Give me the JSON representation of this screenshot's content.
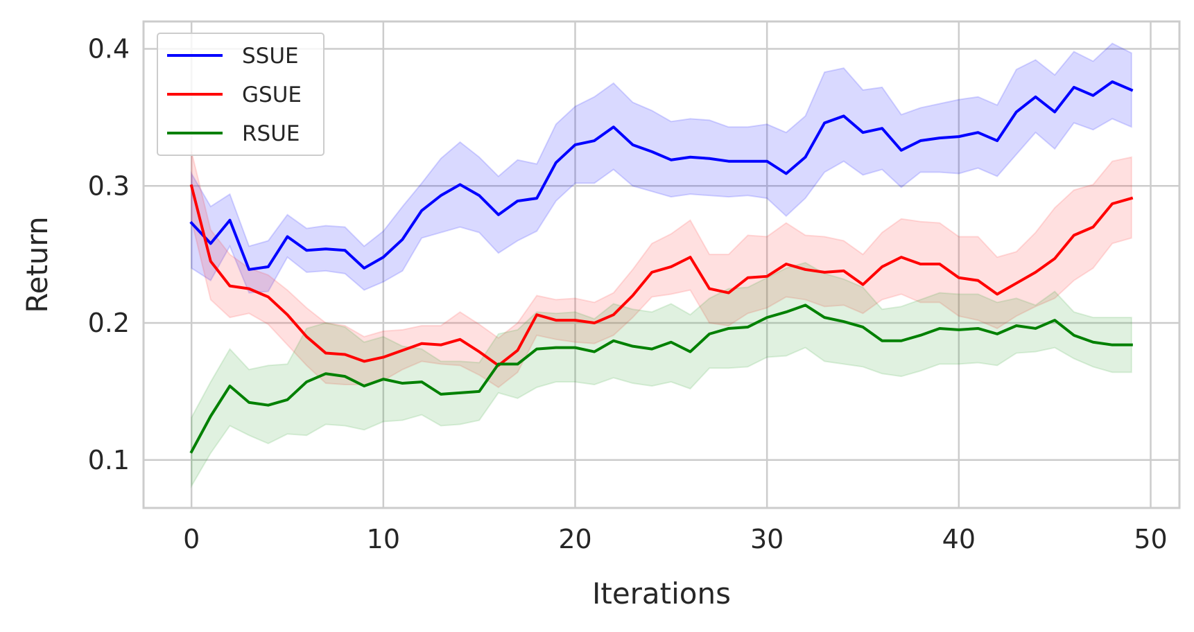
{
  "chart_data": {
    "type": "line",
    "title": "",
    "xlabel": "Iterations",
    "ylabel": "Return",
    "xlim": [
      -2.5,
      51.5
    ],
    "ylim": [
      0.065,
      0.42
    ],
    "x_ticks": [
      0,
      10,
      20,
      30,
      40,
      50
    ],
    "x_tick_labels": [
      "0",
      "10",
      "20",
      "30",
      "40",
      "50"
    ],
    "y_ticks": [
      0.1,
      0.2,
      0.3,
      0.4
    ],
    "y_tick_labels": [
      "0.1",
      "0.2",
      "0.3",
      "0.4"
    ],
    "grid": true,
    "legend_position": "top-left",
    "series": [
      {
        "name": "SSUE",
        "color": "#0000ff",
        "band_color": "#0000ff",
        "values": [
          0.273,
          0.258,
          0.275,
          0.239,
          0.241,
          0.263,
          0.253,
          0.254,
          0.253,
          0.24,
          0.248,
          0.261,
          0.282,
          0.293,
          0.301,
          0.293,
          0.279,
          0.289,
          0.291,
          0.317,
          0.33,
          0.333,
          0.343,
          0.33,
          0.325,
          0.319,
          0.321,
          0.32,
          0.318,
          0.318,
          0.318,
          0.309,
          0.321,
          0.346,
          0.351,
          0.339,
          0.342,
          0.326,
          0.333,
          0.335,
          0.336,
          0.339,
          0.333,
          0.354,
          0.365,
          0.354,
          0.372,
          0.366,
          0.376,
          0.37
        ],
        "upper": [
          0.309,
          0.285,
          0.294,
          0.256,
          0.26,
          0.279,
          0.269,
          0.271,
          0.27,
          0.256,
          0.267,
          0.285,
          0.302,
          0.32,
          0.332,
          0.321,
          0.307,
          0.319,
          0.316,
          0.345,
          0.358,
          0.365,
          0.375,
          0.361,
          0.355,
          0.347,
          0.349,
          0.348,
          0.343,
          0.343,
          0.345,
          0.339,
          0.351,
          0.383,
          0.386,
          0.37,
          0.372,
          0.352,
          0.357,
          0.36,
          0.363,
          0.365,
          0.359,
          0.385,
          0.392,
          0.381,
          0.398,
          0.391,
          0.404,
          0.397
        ],
        "lower": [
          0.24,
          0.231,
          0.256,
          0.222,
          0.223,
          0.248,
          0.237,
          0.238,
          0.236,
          0.224,
          0.23,
          0.238,
          0.262,
          0.266,
          0.27,
          0.266,
          0.251,
          0.26,
          0.267,
          0.289,
          0.302,
          0.302,
          0.312,
          0.3,
          0.296,
          0.292,
          0.294,
          0.293,
          0.292,
          0.293,
          0.291,
          0.278,
          0.291,
          0.31,
          0.318,
          0.308,
          0.312,
          0.299,
          0.31,
          0.31,
          0.309,
          0.313,
          0.307,
          0.323,
          0.339,
          0.327,
          0.346,
          0.341,
          0.349,
          0.343
        ]
      },
      {
        "name": "GSUE",
        "color": "#ff0000",
        "band_color": "#ff3030",
        "values": [
          0.3,
          0.245,
          0.227,
          0.225,
          0.219,
          0.206,
          0.19,
          0.178,
          0.177,
          0.172,
          0.175,
          0.18,
          0.185,
          0.184,
          0.188,
          0.179,
          0.169,
          0.18,
          0.206,
          0.202,
          0.202,
          0.2,
          0.206,
          0.22,
          0.237,
          0.241,
          0.248,
          0.225,
          0.222,
          0.233,
          0.234,
          0.243,
          0.239,
          0.237,
          0.238,
          0.228,
          0.241,
          0.248,
          0.243,
          0.243,
          0.233,
          0.231,
          0.221,
          0.229,
          0.237,
          0.247,
          0.264,
          0.27,
          0.287,
          0.291
        ],
        "upper": [
          0.325,
          0.268,
          0.25,
          0.24,
          0.235,
          0.224,
          0.211,
          0.2,
          0.198,
          0.19,
          0.194,
          0.195,
          0.198,
          0.198,
          0.208,
          0.199,
          0.189,
          0.2,
          0.22,
          0.217,
          0.218,
          0.215,
          0.222,
          0.239,
          0.258,
          0.265,
          0.275,
          0.25,
          0.25,
          0.264,
          0.263,
          0.273,
          0.264,
          0.263,
          0.26,
          0.25,
          0.266,
          0.276,
          0.274,
          0.273,
          0.263,
          0.263,
          0.248,
          0.252,
          0.266,
          0.284,
          0.297,
          0.301,
          0.318,
          0.321
        ],
        "lower": [
          0.275,
          0.217,
          0.204,
          0.207,
          0.199,
          0.184,
          0.169,
          0.156,
          0.155,
          0.155,
          0.158,
          0.166,
          0.172,
          0.17,
          0.169,
          0.162,
          0.153,
          0.164,
          0.191,
          0.188,
          0.186,
          0.185,
          0.191,
          0.204,
          0.219,
          0.221,
          0.224,
          0.2,
          0.198,
          0.207,
          0.211,
          0.219,
          0.217,
          0.212,
          0.213,
          0.207,
          0.217,
          0.221,
          0.215,
          0.215,
          0.205,
          0.202,
          0.196,
          0.205,
          0.212,
          0.218,
          0.231,
          0.24,
          0.258,
          0.262
        ]
      },
      {
        "name": "RSUE",
        "color": "#008000",
        "band_color": "#2ca02c",
        "values": [
          0.106,
          0.132,
          0.154,
          0.142,
          0.14,
          0.144,
          0.157,
          0.163,
          0.161,
          0.154,
          0.159,
          0.156,
          0.157,
          0.148,
          0.149,
          0.15,
          0.17,
          0.17,
          0.181,
          0.182,
          0.182,
          0.179,
          0.187,
          0.183,
          0.181,
          0.186,
          0.179,
          0.192,
          0.196,
          0.197,
          0.204,
          0.208,
          0.213,
          0.204,
          0.201,
          0.197,
          0.187,
          0.187,
          0.191,
          0.196,
          0.195,
          0.196,
          0.192,
          0.198,
          0.196,
          0.202,
          0.191,
          0.186,
          0.184,
          0.184
        ],
        "upper": [
          0.131,
          0.157,
          0.181,
          0.166,
          0.169,
          0.17,
          0.196,
          0.2,
          0.197,
          0.186,
          0.19,
          0.183,
          0.181,
          0.172,
          0.172,
          0.171,
          0.192,
          0.195,
          0.208,
          0.207,
          0.208,
          0.203,
          0.214,
          0.21,
          0.208,
          0.214,
          0.206,
          0.218,
          0.225,
          0.226,
          0.233,
          0.24,
          0.244,
          0.236,
          0.232,
          0.226,
          0.21,
          0.212,
          0.217,
          0.222,
          0.221,
          0.221,
          0.215,
          0.218,
          0.213,
          0.223,
          0.208,
          0.204,
          0.204,
          0.204
        ],
        "lower": [
          0.081,
          0.105,
          0.125,
          0.118,
          0.112,
          0.119,
          0.118,
          0.126,
          0.125,
          0.122,
          0.128,
          0.129,
          0.133,
          0.125,
          0.126,
          0.129,
          0.149,
          0.145,
          0.153,
          0.157,
          0.157,
          0.155,
          0.16,
          0.156,
          0.154,
          0.157,
          0.152,
          0.167,
          0.167,
          0.168,
          0.175,
          0.176,
          0.182,
          0.172,
          0.17,
          0.168,
          0.163,
          0.161,
          0.165,
          0.17,
          0.17,
          0.171,
          0.169,
          0.178,
          0.179,
          0.182,
          0.174,
          0.168,
          0.164,
          0.164
        ]
      }
    ]
  }
}
